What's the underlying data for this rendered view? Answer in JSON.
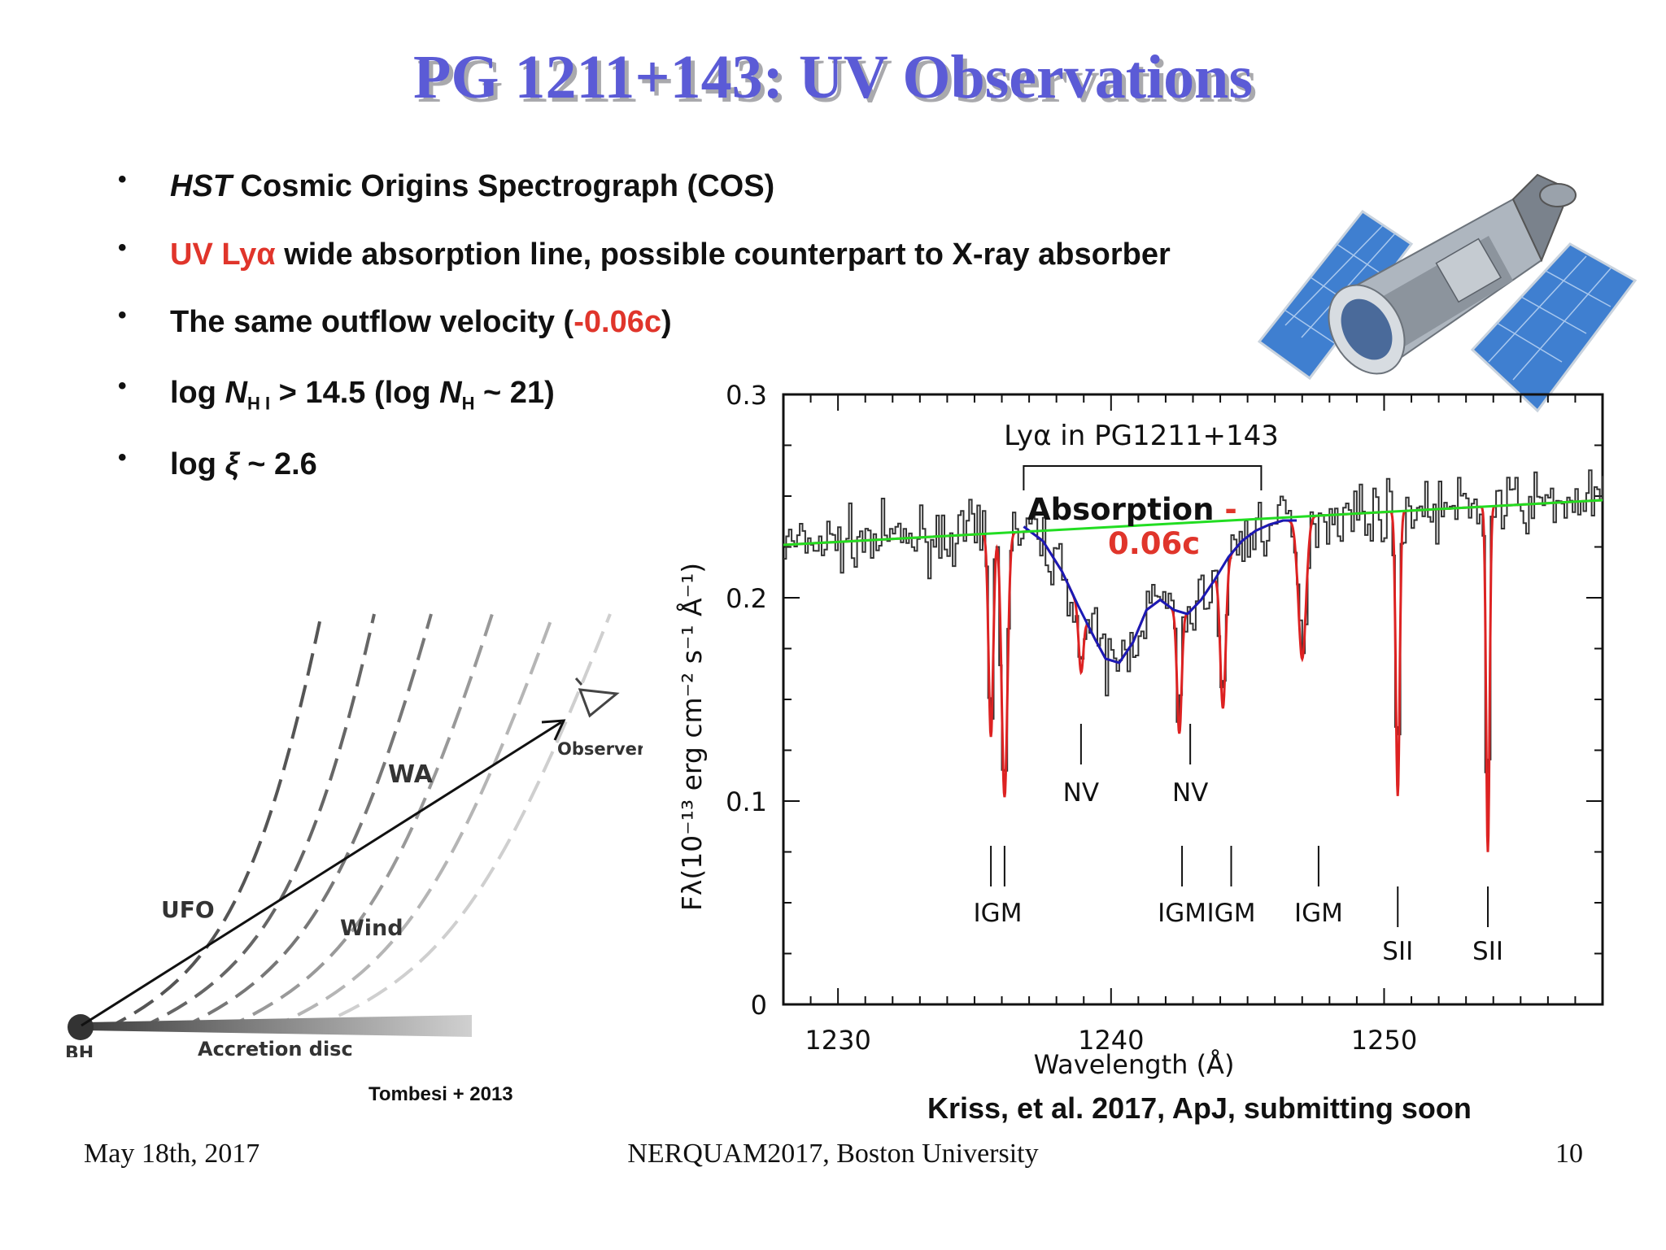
{
  "slide": {
    "title": "PG 1211+143: UV Observations",
    "bullets": [
      {
        "parts": [
          {
            "t": "HST",
            "style": "italic"
          },
          {
            "t": " Cosmic Origins Spectrograph (COS)"
          }
        ]
      },
      {
        "parts": [
          {
            "t": "UV Lyα",
            "style": "red"
          },
          {
            "t": " wide absorption line, possible counterpart to X-ray absorber"
          }
        ]
      },
      {
        "parts": [
          {
            "t": "The same outflow velocity ("
          },
          {
            "t": "-0.06c",
            "style": "red"
          },
          {
            "t": ")"
          }
        ]
      },
      {
        "parts": [
          {
            "t": "log "
          },
          {
            "t": "N",
            "style": "italic"
          },
          {
            "t": "H I",
            "style": "sub"
          },
          {
            "t": " > 14.5 (log "
          },
          {
            "t": "N",
            "style": "italic"
          },
          {
            "t": "H",
            "style": "sub"
          },
          {
            "t": " ~ 21)"
          }
        ]
      },
      {
        "parts": [
          {
            "t": "log "
          },
          {
            "t": "ξ",
            "style": "italic"
          },
          {
            "t": " ~ 2.6"
          }
        ]
      }
    ],
    "credit_diagram": "Tombesi + 2013",
    "credit_spectrum": "Kriss, et al. 2017, ApJ, submitting soon",
    "footer": {
      "date": "May 18th, 2017",
      "event": "NERQUAM2017, Boston University",
      "page": "10"
    }
  },
  "diagram": {
    "labels": {
      "bh": "BH",
      "disc": "Accretion disc",
      "ufo": "UFO",
      "wind": "Wind",
      "wa": "WA",
      "observer": "Observer"
    }
  },
  "chart_data": {
    "type": "line",
    "title": "Lyα in PG1211+143",
    "xlabel": "Wavelength (Å)",
    "ylabel": "Fλ(10⁻¹³ erg cm⁻² s⁻¹ Å⁻¹)",
    "xlim": [
      1228,
      1258
    ],
    "ylim": [
      0,
      0.3
    ],
    "xticks": [
      1230,
      1240,
      1250
    ],
    "yticks": [
      0,
      0.1,
      0.2,
      0.3
    ],
    "ytick_labels": [
      "0",
      "0.1",
      "0.2",
      "0.3"
    ],
    "continuum": {
      "x": [
        1228,
        1258
      ],
      "y": [
        0.226,
        0.248
      ],
      "color": "#22dd22"
    },
    "lya_fit": {
      "color": "#1a1ab5",
      "x": [
        1236.8,
        1237.5,
        1238.2,
        1238.8,
        1239.4,
        1239.8,
        1240.3,
        1240.8,
        1241.3,
        1241.8,
        1242.3,
        1242.8,
        1243.3,
        1243.8,
        1244.3,
        1244.8,
        1245.3,
        1245.8,
        1246.3,
        1246.8
      ],
      "y": [
        0.235,
        0.228,
        0.213,
        0.196,
        0.18,
        0.17,
        0.168,
        0.178,
        0.194,
        0.199,
        0.194,
        0.192,
        0.199,
        0.209,
        0.22,
        0.228,
        0.233,
        0.236,
        0.238,
        0.238
      ]
    },
    "absorption_lines": {
      "color": "#dd2222",
      "centers": [
        1235.6,
        1236.1,
        1238.9,
        1242.5,
        1244.1,
        1247.0,
        1250.5,
        1253.8
      ],
      "depths": [
        0.1,
        0.13,
        0.03,
        0.06,
        0.07,
        0.07,
        0.14,
        0.17
      ],
      "widths": [
        0.12,
        0.15,
        0.12,
        0.12,
        0.14,
        0.2,
        0.1,
        0.09
      ]
    },
    "noise_seed": 7,
    "annotations": {
      "lya_bracket": {
        "x1": 1236.8,
        "x2": 1245.5
      },
      "absorption_label": "Absorption ",
      "absorption_label_red1": "-",
      "absorption_label_red2": "0.06c",
      "line_ids": [
        {
          "label": "NV",
          "x": [
            1238.9
          ]
        },
        {
          "label": "NV",
          "x": [
            1242.9
          ]
        },
        {
          "label": "IGM",
          "x": [
            1235.6,
            1236.1
          ]
        },
        {
          "label": "IGM",
          "x": [
            1242.6
          ]
        },
        {
          "label": "IGM",
          "x": [
            1244.4
          ]
        },
        {
          "label": "IGM",
          "x": [
            1247.6
          ]
        },
        {
          "label": "SII",
          "x": [
            1250.5
          ]
        },
        {
          "label": "SII",
          "x": [
            1253.8
          ]
        }
      ]
    }
  }
}
